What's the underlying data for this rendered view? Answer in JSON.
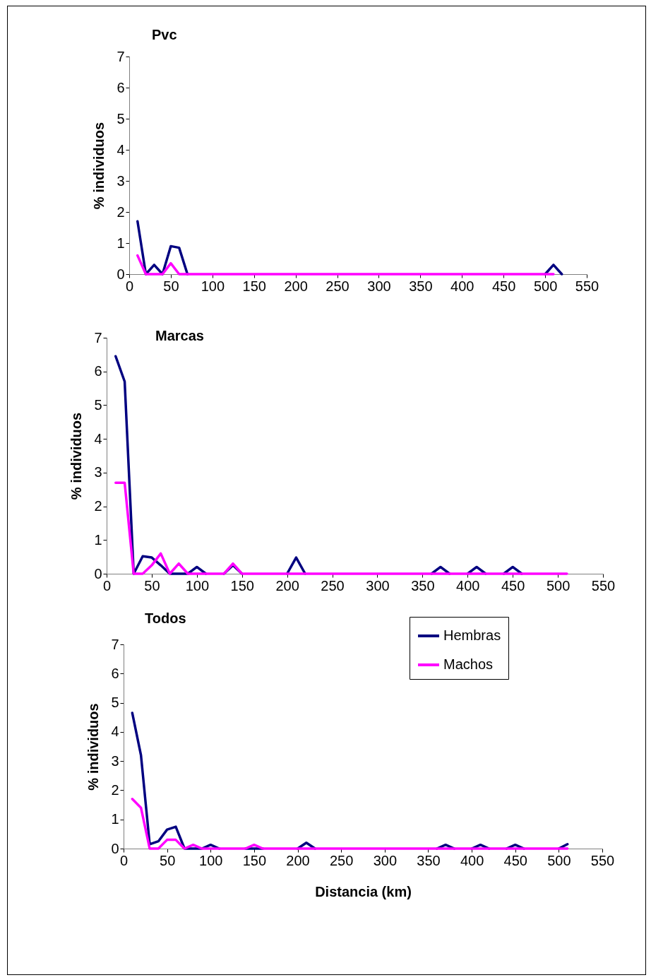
{
  "chart_data": [
    {
      "type": "line",
      "title": "Pvc",
      "ylabel": "% individuos",
      "xlim": [
        0,
        550
      ],
      "xticks": [
        0,
        50,
        100,
        150,
        200,
        250,
        300,
        350,
        400,
        450,
        500,
        550
      ],
      "ylim": [
        0,
        7
      ],
      "yticks": [
        0,
        1,
        2,
        3,
        4,
        5,
        6,
        7
      ],
      "grid": false,
      "legend": false,
      "x": [
        10,
        20,
        30,
        40,
        50,
        60,
        70,
        80,
        90,
        100,
        110,
        120,
        130,
        140,
        150,
        160,
        170,
        180,
        190,
        200,
        210,
        220,
        230,
        240,
        250,
        260,
        270,
        280,
        290,
        300,
        310,
        320,
        330,
        340,
        350,
        360,
        370,
        380,
        390,
        400,
        410,
        420,
        430,
        440,
        450,
        460,
        470,
        480,
        490,
        500,
        510,
        520
      ],
      "series": [
        {
          "color": "#000080",
          "values": [
            1.7,
            0,
            0.3,
            0,
            0.9,
            0.85,
            0,
            null,
            null,
            null,
            null,
            null,
            null,
            null,
            null,
            null,
            null,
            null,
            null,
            null,
            null,
            null,
            null,
            null,
            null,
            null,
            null,
            null,
            null,
            null,
            null,
            null,
            null,
            null,
            null,
            null,
            null,
            null,
            null,
            null,
            null,
            null,
            null,
            null,
            null,
            null,
            null,
            null,
            null,
            0,
            0.3,
            0
          ]
        },
        {
          "color": "#ff00ff",
          "values": [
            0.6,
            0,
            0,
            0,
            0.35,
            0,
            0,
            0,
            0,
            0,
            0,
            0,
            0,
            0,
            0,
            0,
            0,
            0,
            0,
            0,
            0,
            0,
            0,
            0,
            0,
            0,
            0,
            0,
            0,
            0,
            0,
            0,
            0,
            0,
            0,
            0,
            0,
            0,
            0,
            0,
            0,
            0,
            0,
            0,
            0,
            0,
            0,
            0,
            0,
            0,
            0,
            null
          ]
        }
      ]
    },
    {
      "type": "line",
      "title": "Marcas",
      "ylabel": "% individuos",
      "xlim": [
        0,
        550
      ],
      "xticks": [
        0,
        50,
        100,
        150,
        200,
        250,
        300,
        350,
        400,
        450,
        500,
        550
      ],
      "ylim": [
        0,
        7
      ],
      "yticks": [
        0,
        1,
        2,
        3,
        4,
        5,
        6,
        7
      ],
      "grid": false,
      "legend": false,
      "x": [
        10,
        20,
        30,
        40,
        50,
        60,
        70,
        80,
        90,
        100,
        110,
        120,
        130,
        140,
        150,
        160,
        170,
        180,
        190,
        200,
        210,
        220,
        230,
        240,
        250,
        260,
        270,
        280,
        290,
        300,
        310,
        320,
        330,
        340,
        350,
        360,
        370,
        380,
        390,
        400,
        410,
        420,
        430,
        440,
        450,
        460,
        470,
        480,
        490,
        500,
        510
      ],
      "series": [
        {
          "color": "#000080",
          "values": [
            6.45,
            5.7,
            0,
            0.52,
            0.48,
            0.25,
            0,
            0,
            0,
            0.2,
            0,
            null,
            0,
            0.25,
            0,
            null,
            null,
            null,
            null,
            0,
            0.48,
            0,
            null,
            null,
            null,
            null,
            null,
            null,
            null,
            null,
            null,
            null,
            null,
            null,
            null,
            0,
            0.2,
            0,
            null,
            0,
            0.2,
            0,
            null,
            0,
            0.2,
            0,
            null,
            null,
            null,
            null,
            null
          ]
        },
        {
          "color": "#ff00ff",
          "values": [
            2.7,
            2.7,
            0,
            0,
            0.25,
            0.6,
            0,
            0.3,
            0,
            0,
            0,
            0,
            0,
            0.3,
            0,
            0,
            0,
            0,
            0,
            0,
            0,
            0,
            0,
            0,
            0,
            0,
            0,
            0,
            0,
            0,
            0,
            0,
            0,
            0,
            0,
            0,
            0,
            0,
            0,
            0,
            0,
            0,
            0,
            0,
            0,
            0,
            0,
            0,
            0,
            0,
            0
          ]
        }
      ]
    },
    {
      "type": "line",
      "title": "Todos",
      "xlabel": "Distancia (km)",
      "ylabel": "% individuos",
      "xlim": [
        0,
        550
      ],
      "xticks": [
        0,
        50,
        100,
        150,
        200,
        250,
        300,
        350,
        400,
        450,
        500,
        550
      ],
      "ylim": [
        0,
        7
      ],
      "yticks": [
        0,
        1,
        2,
        3,
        4,
        5,
        6,
        7
      ],
      "grid": false,
      "legend": "top right",
      "x": [
        10,
        20,
        30,
        40,
        50,
        60,
        70,
        80,
        90,
        100,
        110,
        120,
        130,
        140,
        150,
        160,
        170,
        180,
        190,
        200,
        210,
        220,
        230,
        240,
        250,
        260,
        270,
        280,
        290,
        300,
        310,
        320,
        330,
        340,
        350,
        360,
        370,
        380,
        390,
        400,
        410,
        420,
        430,
        440,
        450,
        460,
        470,
        480,
        490,
        500,
        510
      ],
      "series": [
        {
          "name": "Hembras",
          "color": "#000080",
          "values": [
            4.65,
            3.2,
            0.15,
            0.25,
            0.65,
            0.75,
            0,
            0,
            0,
            0.13,
            0,
            null,
            null,
            0,
            0,
            0,
            null,
            null,
            null,
            0,
            0.2,
            0,
            null,
            null,
            null,
            null,
            null,
            null,
            null,
            null,
            null,
            null,
            null,
            null,
            null,
            0,
            0.13,
            0,
            null,
            0,
            0.13,
            0,
            null,
            0,
            0.13,
            0,
            null,
            null,
            null,
            0,
            0.15
          ]
        },
        {
          "name": "Machos",
          "color": "#ff00ff",
          "values": [
            1.7,
            1.4,
            0,
            0,
            0.3,
            0.3,
            0,
            0.13,
            0,
            0,
            0,
            0,
            0,
            0,
            0.13,
            0,
            0,
            0,
            0,
            0,
            0,
            0,
            0,
            0,
            0,
            0,
            0,
            0,
            0,
            0,
            0,
            0,
            0,
            0,
            0,
            0,
            0,
            0,
            0,
            0,
            0,
            0,
            0,
            0,
            0,
            0,
            0,
            0,
            0,
            0,
            0
          ]
        }
      ]
    }
  ]
}
